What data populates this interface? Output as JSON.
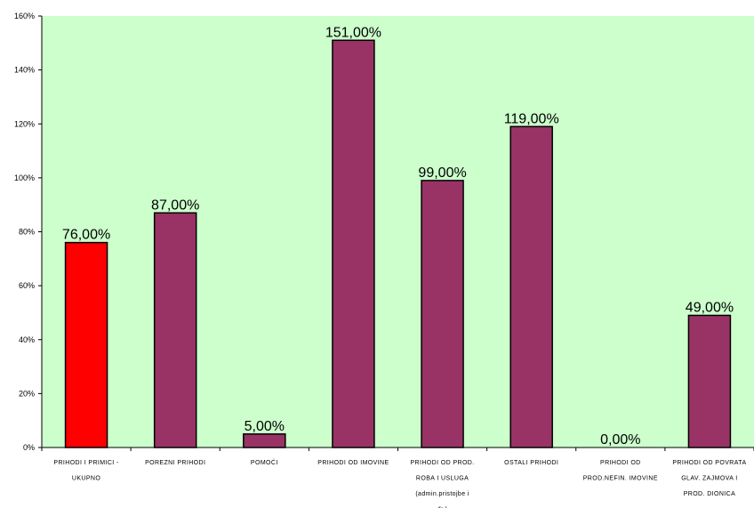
{
  "chart_data": {
    "type": "bar",
    "categories": [
      [
        "PRIHODI I PRIMICI -",
        "UKUPNO"
      ],
      [
        "POREZNI PRIHODI"
      ],
      [
        "POMOĆI"
      ],
      [
        "PRIHODI OD IMOVINE"
      ],
      [
        "PRIHODI OD PROD.",
        "ROBA I USLUGA",
        "(admin.pristojbe i",
        "dr.)"
      ],
      [
        "OSTALI PRIHODI"
      ],
      [
        "PRIHODI OD",
        "PROD.NEFIN. IMOVINE"
      ],
      [
        "PRIHODI OD POVRATA",
        "GLAV. ZAJMOVA I",
        "PROD. DIONICA"
      ]
    ],
    "values": [
      76,
      87,
      5,
      151,
      99,
      119,
      0,
      49
    ],
    "data_labels": [
      "76,00%",
      "87,00%",
      "5,00%",
      "151,00%",
      "99,00%",
      "119,00%",
      "0,00%",
      "49,00%"
    ],
    "bar_colors": [
      "#FF0000",
      "#993366",
      "#993366",
      "#993366",
      "#993366",
      "#993366",
      "#993366",
      "#993366"
    ],
    "ylim": [
      0,
      160
    ],
    "y_ticks": [
      0,
      20,
      40,
      60,
      80,
      100,
      120,
      140,
      160
    ],
    "y_tick_labels": [
      "0%",
      "20%",
      "40%",
      "60%",
      "80%",
      "100%",
      "120%",
      "140%",
      "160%"
    ],
    "title": "",
    "xlabel": "",
    "ylabel": "",
    "plot_background": "#CCFFCC",
    "grid": false,
    "legend": "none"
  }
}
